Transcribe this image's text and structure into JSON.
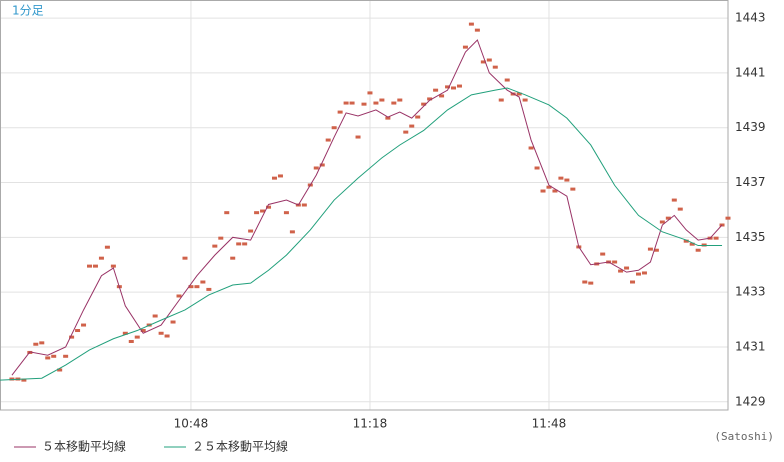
{
  "chart_data": {
    "type": "line",
    "subtitle": "1分足",
    "credit": "(Satoshi)",
    "xlim": [
      616,
      738
    ],
    "xticks": [
      {
        "value": 648,
        "label": "10:48"
      },
      {
        "value": 678,
        "label": "11:18"
      },
      {
        "value": 708,
        "label": "11:48"
      }
    ],
    "ylim": [
      1428.7,
      1443.66
    ],
    "yticks": [
      1429,
      1431,
      1433,
      1435,
      1437,
      1439,
      1441,
      1443
    ],
    "grid": true,
    "series": [
      {
        "name": "５本移動平均線",
        "color": "#993366",
        "x": [
          618,
          621,
          624,
          627,
          630,
          633,
          635,
          637,
          640,
          643,
          646,
          649,
          652,
          655,
          658,
          661,
          664,
          666,
          669,
          672,
          674,
          676,
          679,
          681,
          683,
          685,
          688,
          691,
          694,
          696,
          698,
          701,
          703,
          705,
          708,
          711,
          713,
          715,
          718,
          721,
          723,
          725,
          727,
          729,
          731,
          733,
          735,
          737
        ],
        "values": [
          1429.97,
          1430.82,
          1430.7,
          1431.0,
          1432.35,
          1433.6,
          1433.88,
          1432.5,
          1431.5,
          1431.8,
          1432.7,
          1433.6,
          1434.35,
          1435.0,
          1434.9,
          1436.2,
          1436.36,
          1436.18,
          1437.27,
          1438.66,
          1439.54,
          1439.43,
          1439.65,
          1439.39,
          1439.57,
          1439.35,
          1440.0,
          1440.37,
          1441.76,
          1442.2,
          1441.0,
          1440.37,
          1440.12,
          1438.55,
          1436.9,
          1436.5,
          1434.65,
          1434.0,
          1434.1,
          1433.73,
          1433.8,
          1434.1,
          1435.45,
          1435.8,
          1435.27,
          1434.9,
          1434.97,
          1435.45
        ]
      },
      {
        "name": "２５本移動平均線",
        "color": "#22a07c",
        "x": [
          616,
          623,
          627,
          631,
          635,
          639,
          643,
          647,
          651,
          655,
          658,
          661,
          664,
          668,
          672,
          676,
          680,
          683,
          687,
          691,
          695,
          699,
          701,
          704,
          708,
          711,
          715,
          719,
          723,
          727,
          731,
          733,
          737
        ],
        "values": [
          1429.79,
          1429.86,
          1430.34,
          1430.89,
          1431.3,
          1431.6,
          1431.98,
          1432.35,
          1432.9,
          1433.26,
          1433.33,
          1433.8,
          1434.35,
          1435.27,
          1436.36,
          1437.16,
          1437.9,
          1438.37,
          1438.9,
          1439.65,
          1440.2,
          1440.37,
          1440.45,
          1440.2,
          1439.83,
          1439.35,
          1438.37,
          1436.9,
          1435.8,
          1435.2,
          1434.9,
          1434.7,
          1434.7
        ]
      }
    ],
    "points": {
      "color": "#d0624a",
      "x": [
        618,
        619,
        620,
        621,
        622,
        623,
        624,
        625,
        626,
        627,
        628,
        629,
        630,
        631,
        632,
        633,
        634,
        635,
        636,
        637,
        638,
        639,
        640,
        641,
        642,
        643,
        644,
        645,
        646,
        647,
        648,
        649,
        650,
        651,
        652,
        653,
        654,
        655,
        656,
        657,
        658,
        659,
        660,
        661,
        662,
        663,
        664,
        665,
        666,
        667,
        668,
        669,
        670,
        671,
        672,
        673,
        674,
        675,
        676,
        677,
        678,
        679,
        680,
        681,
        682,
        683,
        684,
        685,
        686,
        687,
        688,
        689,
        690,
        691,
        692,
        693,
        694,
        695,
        696,
        697,
        698,
        699,
        700,
        701,
        702,
        703,
        704,
        705,
        706,
        707,
        708,
        709,
        710,
        711,
        712,
        713,
        714,
        715,
        716,
        717,
        718,
        719,
        720,
        721,
        722,
        723,
        724,
        725,
        726,
        727,
        728,
        729,
        730,
        731,
        732,
        733,
        734,
        735,
        736,
        737,
        738
      ],
      "values": [
        1429.83,
        1429.83,
        1429.79,
        1430.8,
        1431.1,
        1431.15,
        1430.6,
        1430.66,
        1430.16,
        1430.66,
        1431.36,
        1431.6,
        1431.8,
        1433.95,
        1433.95,
        1434.24,
        1434.64,
        1433.95,
        1433.2,
        1431.5,
        1431.2,
        1431.36,
        1431.6,
        1431.8,
        1432.13,
        1431.5,
        1431.4,
        1431.91,
        1432.86,
        1434.24,
        1433.2,
        1433.2,
        1433.37,
        1433.1,
        1434.68,
        1434.97,
        1435.9,
        1434.24,
        1434.76,
        1434.76,
        1435.23,
        1435.9,
        1435.96,
        1436.1,
        1437.16,
        1437.24,
        1435.9,
        1435.2,
        1436.18,
        1436.18,
        1436.91,
        1437.53,
        1437.64,
        1438.55,
        1439.0,
        1439.57,
        1439.9,
        1439.9,
        1438.66,
        1439.86,
        1440.27,
        1439.9,
        1440.01,
        1439.35,
        1439.9,
        1440.01,
        1438.84,
        1439.06,
        1439.39,
        1439.86,
        1440.05,
        1440.37,
        1440.16,
        1440.49,
        1440.45,
        1440.52,
        1441.94,
        1442.78,
        1442.56,
        1441.4,
        1441.47,
        1441.21,
        1440.01,
        1440.74,
        1440.23,
        1440.23,
        1440.01,
        1438.26,
        1437.53,
        1436.69,
        1436.83,
        1436.69,
        1437.16,
        1437.09,
        1436.76,
        1434.65,
        1433.37,
        1433.33,
        1434.03,
        1434.39,
        1434.1,
        1434.1,
        1433.77,
        1433.88,
        1433.37,
        1433.66,
        1433.7,
        1434.57,
        1434.53,
        1435.56,
        1435.7,
        1436.36,
        1436.03,
        1434.86,
        1434.75,
        1434.53,
        1434.72,
        1434.97,
        1434.97,
        1435.45,
        1435.7
      ]
    }
  }
}
